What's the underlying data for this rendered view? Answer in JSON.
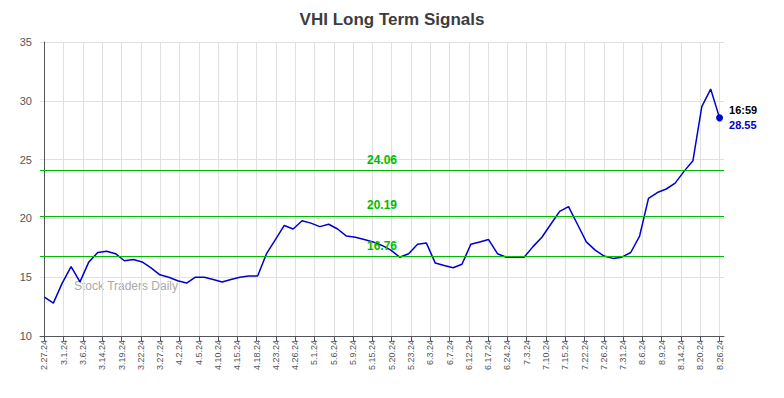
{
  "chart_data": {
    "type": "line",
    "title": "VHI Long Term Signals",
    "color": "#0000cc",
    "x": [
      0,
      1,
      2,
      3,
      4,
      5,
      6,
      7,
      8,
      9,
      10,
      11,
      12,
      13,
      14,
      15,
      16,
      17,
      18,
      19,
      20,
      21,
      22,
      23,
      24,
      25,
      26,
      27,
      28,
      29,
      30,
      31,
      32,
      33,
      34,
      35,
      36,
      37,
      38,
      39,
      40,
      41,
      42,
      43,
      44,
      45,
      46,
      47,
      48,
      49,
      50,
      51,
      52,
      53,
      54,
      55,
      56,
      57,
      58,
      59,
      60,
      61,
      62,
      63,
      64,
      65,
      66,
      67,
      68,
      69,
      70,
      71,
      72,
      73,
      74,
      75,
      76
    ],
    "values": [
      13.3,
      12.8,
      14.5,
      15.9,
      14.6,
      16.3,
      17.1,
      17.2,
      17.0,
      16.4,
      16.5,
      16.3,
      15.8,
      15.2,
      15.0,
      14.7,
      14.5,
      15.0,
      15.0,
      14.8,
      14.6,
      14.8,
      15.0,
      15.1,
      15.1,
      17.0,
      18.2,
      19.4,
      19.1,
      19.8,
      19.6,
      19.3,
      19.5,
      19.1,
      18.5,
      18.4,
      18.2,
      18.0,
      17.7,
      17.3,
      16.7,
      17.0,
      17.8,
      17.9,
      16.2,
      16.0,
      15.8,
      16.1,
      17.8,
      18.0,
      18.2,
      17.0,
      16.7,
      16.7,
      16.7,
      17.6,
      18.4,
      19.5,
      20.6,
      21.0,
      19.5,
      18.0,
      17.3,
      16.8,
      16.6,
      16.7,
      17.1,
      18.5,
      21.7,
      22.2,
      22.5,
      23.0,
      24.0,
      24.9,
      29.5,
      31.0,
      28.55
    ],
    "xlim": [
      -0.5,
      76.5
    ],
    "xticks": [
      {
        "value": 0,
        "label": "2.27.24"
      },
      {
        "value": 2.1714285714,
        "label": "3.1.24"
      },
      {
        "value": 4.3428571429,
        "label": "3.6.24"
      },
      {
        "value": 6.5142857143,
        "label": "3.14.24"
      },
      {
        "value": 8.6857142857,
        "label": "3.19.24"
      },
      {
        "value": 10.8571428571,
        "label": "3.22.24"
      },
      {
        "value": 13.0285714286,
        "label": "3.27.24"
      },
      {
        "value": 15.2,
        "label": "4.2.24"
      },
      {
        "value": 17.3714285714,
        "label": "4.5.24"
      },
      {
        "value": 19.5428571429,
        "label": "4.10.24"
      },
      {
        "value": 21.7142857143,
        "label": "4.15.24"
      },
      {
        "value": 23.8857142857,
        "label": "4.18.24"
      },
      {
        "value": 26.0571428571,
        "label": "4.23.24"
      },
      {
        "value": 28.2285714286,
        "label": "4.26.24"
      },
      {
        "value": 30.4,
        "label": "5.1.24"
      },
      {
        "value": 32.5714285714,
        "label": "5.6.24"
      },
      {
        "value": 34.7428571429,
        "label": "5.9.24"
      },
      {
        "value": 36.9142857143,
        "label": "5.15.24"
      },
      {
        "value": 39.0857142857,
        "label": "5.20.24"
      },
      {
        "value": 41.2571428571,
        "label": "5.23.24"
      },
      {
        "value": 43.4285714286,
        "label": "6.3.24"
      },
      {
        "value": 45.6,
        "label": "6.7.24"
      },
      {
        "value": 47.7714285714,
        "label": "6.12.24"
      },
      {
        "value": 49.9428571429,
        "label": "6.17.24"
      },
      {
        "value": 52.1142857143,
        "label": "6.24.24"
      },
      {
        "value": 54.2857142857,
        "label": "7.3.24"
      },
      {
        "value": 56.4571428571,
        "label": "7.10.24"
      },
      {
        "value": 58.6285714286,
        "label": "7.15.24"
      },
      {
        "value": 60.8,
        "label": "7.22.24"
      },
      {
        "value": 62.9714285714,
        "label": "7.26.24"
      },
      {
        "value": 65.1428571429,
        "label": "7.31.24"
      },
      {
        "value": 67.3142857143,
        "label": "8.6.24"
      },
      {
        "value": 69.4857142857,
        "label": "8.9.24"
      },
      {
        "value": 71.6571428571,
        "label": "8.14.24"
      },
      {
        "value": 73.8285714286,
        "label": "8.20.24"
      },
      {
        "value": 76,
        "label": "8.26.24"
      }
    ],
    "ylim": [
      10,
      35
    ],
    "yticks": [
      10,
      15,
      20,
      25,
      30,
      35
    ],
    "grid": true,
    "hlines": [
      {
        "value": 16.76,
        "label": "16.76",
        "color": "#00bb00"
      },
      {
        "value": 20.19,
        "label": "20.19",
        "color": "#00bb00"
      },
      {
        "value": 24.06,
        "label": "24.06",
        "color": "#00bb00"
      }
    ],
    "annotations": [
      {
        "text": "16:59",
        "color": "#000000"
      },
      {
        "text": "28.55",
        "color": "#0000cc"
      }
    ],
    "watermark": {
      "text": "Stock Traders Daily",
      "color": "#aaaaaa"
    }
  }
}
